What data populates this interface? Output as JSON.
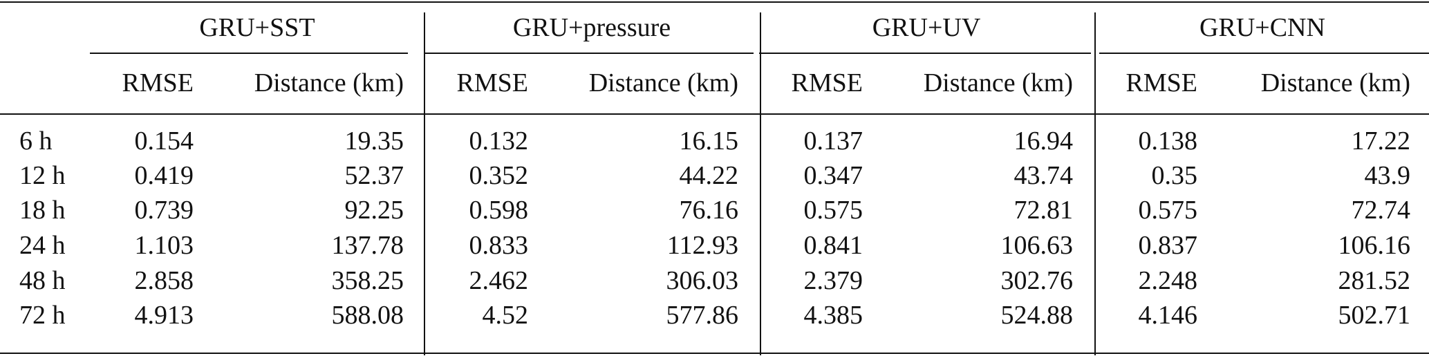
{
  "table": {
    "group_headers": [
      "GRU+SST",
      "GRU+pressure",
      "GRU+UV",
      "GRU+CNN"
    ],
    "sub_headers": [
      "RMSE",
      "Distance (km)"
    ],
    "rows": [
      {
        "label": "6 h",
        "values": [
          "0.154",
          "19.35",
          "0.132",
          "16.15",
          "0.137",
          "16.94",
          "0.138",
          "17.22"
        ]
      },
      {
        "label": "12 h",
        "values": [
          "0.419",
          "52.37",
          "0.352",
          "44.22",
          "0.347",
          "43.74",
          "0.35",
          "43.9"
        ]
      },
      {
        "label": "18 h",
        "values": [
          "0.739",
          "92.25",
          "0.598",
          "76.16",
          "0.575",
          "72.81",
          "0.575",
          "72.74"
        ]
      },
      {
        "label": "24 h",
        "values": [
          "1.103",
          "137.78",
          "0.833",
          "112.93",
          "0.841",
          "106.63",
          "0.837",
          "106.16"
        ]
      },
      {
        "label": "48 h",
        "values": [
          "2.858",
          "358.25",
          "2.462",
          "306.03",
          "2.379",
          "302.76",
          "2.248",
          "281.52"
        ]
      },
      {
        "label": "72 h",
        "values": [
          "4.913",
          "588.08",
          "4.52",
          "577.86",
          "4.385",
          "524.88",
          "4.146",
          "502.71"
        ]
      }
    ]
  }
}
